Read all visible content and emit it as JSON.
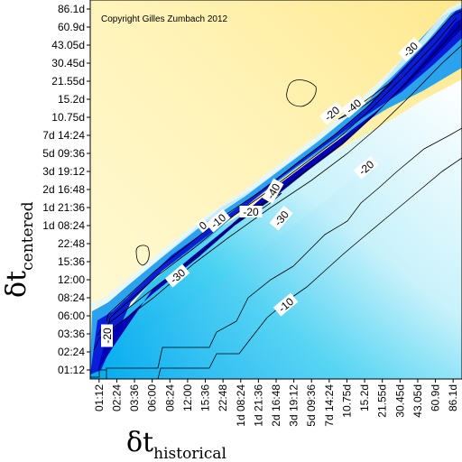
{
  "chart_data": {
    "type": "heatmap",
    "copyright": "Copyright Gilles Zumbach 2012",
    "x_axis": {
      "symbol": "δt",
      "subscript": "historical",
      "ticks": [
        "01:12",
        "02:24",
        "03:36",
        "06:00",
        "08:24",
        "12:00",
        "15:36",
        "22:48",
        "1d 08:24",
        "1d 21:36",
        "2d 16:48",
        "3d 19:12",
        "5d 09:36",
        "7d 14:24",
        "10.75d",
        "15.2d",
        "21.55d",
        "30.45d",
        "43.05d",
        "60.9d",
        "86.1d"
      ]
    },
    "y_axis": {
      "symbol": "δt",
      "subscript": "centered",
      "ticks": [
        "01:12",
        "02:24",
        "03:36",
        "06:00",
        "08:24",
        "12:00",
        "15:36",
        "22:48",
        "1d 08:24",
        "1d 21:36",
        "2d 16:48",
        "3d 19:12",
        "5d 09:36",
        "7d 14:24",
        "10.75d",
        "15.2d",
        "21.55d",
        "30.45d",
        "43.05d",
        "60.9d",
        "86.1d"
      ]
    },
    "contour_labels": [
      "-30",
      "-20",
      "-40",
      "-20",
      "-40",
      "-30",
      "-20",
      "0",
      "-10",
      "-30",
      "-10",
      "-20"
    ],
    "colors": {
      "high": "#fff0a0",
      "zero": "#ffffd8",
      "mid": "#1fd0f0",
      "low": "#0000d0",
      "light_blue": "#ffffff"
    }
  }
}
